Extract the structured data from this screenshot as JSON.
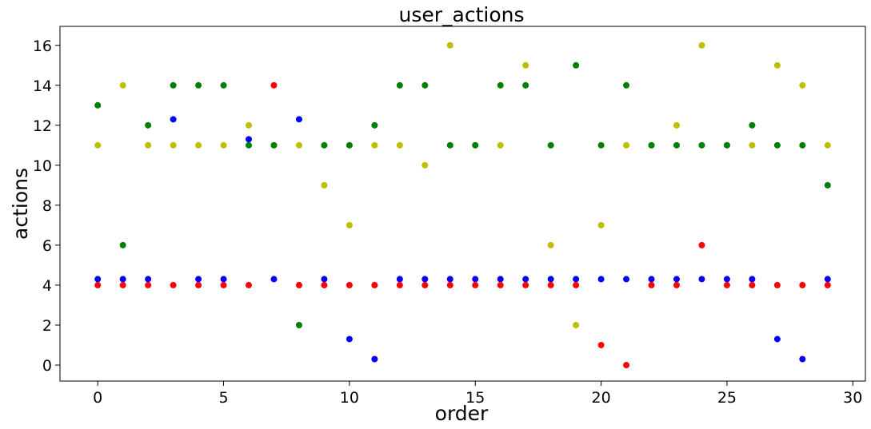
{
  "chart_data": {
    "type": "scatter",
    "title": "user_actions",
    "xlabel": "order",
    "ylabel": "actions",
    "xlim": [
      -1.5,
      30.5
    ],
    "ylim": [
      -0.8,
      16.95
    ],
    "xticks": [
      0,
      5,
      10,
      15,
      20,
      25,
      30
    ],
    "yticks": [
      0,
      2,
      4,
      6,
      8,
      10,
      12,
      14,
      16
    ],
    "grid": false,
    "legend": "none",
    "x": [
      0,
      1,
      2,
      3,
      4,
      5,
      6,
      7,
      8,
      9,
      10,
      11,
      12,
      13,
      14,
      15,
      16,
      17,
      18,
      19,
      20,
      21,
      22,
      23,
      24,
      25,
      26,
      27,
      28,
      29
    ],
    "series": [
      {
        "color": "#0000ff",
        "values": [
          4.3,
          4.3,
          4.3,
          12.3,
          4.3,
          4.3,
          11.3,
          4.3,
          12.3,
          4.3,
          1.3,
          0.3,
          4.3,
          4.3,
          4.3,
          4.3,
          4.3,
          4.3,
          4.3,
          4.3,
          4.3,
          4.3,
          4.3,
          4.3,
          4.3,
          4.3,
          4.3,
          1.3,
          0.3,
          4.3
        ]
      },
      {
        "color": "#ff0000",
        "values": [
          4,
          4,
          4,
          4,
          4,
          4,
          4,
          14,
          4,
          4,
          4,
          4,
          4,
          4,
          4,
          4,
          4,
          4,
          4,
          4,
          1,
          0,
          4,
          4,
          6,
          4,
          4,
          4,
          4,
          4
        ]
      },
      {
        "color": "#bfbf00",
        "values": [
          11,
          14,
          11,
          11,
          11,
          11,
          12,
          11,
          11,
          9,
          7,
          11,
          11,
          10,
          16,
          11,
          11,
          15,
          6,
          2,
          7,
          11,
          11,
          12,
          16,
          11,
          11,
          15,
          14,
          11
        ]
      },
      {
        "color": "#008000",
        "values": [
          13,
          6,
          12,
          14,
          14,
          14,
          11,
          11,
          2,
          11,
          11,
          12,
          14,
          14,
          11,
          11,
          14,
          14,
          11,
          15,
          11,
          14,
          11,
          11,
          11,
          11,
          12,
          11,
          11,
          9
        ]
      }
    ]
  }
}
